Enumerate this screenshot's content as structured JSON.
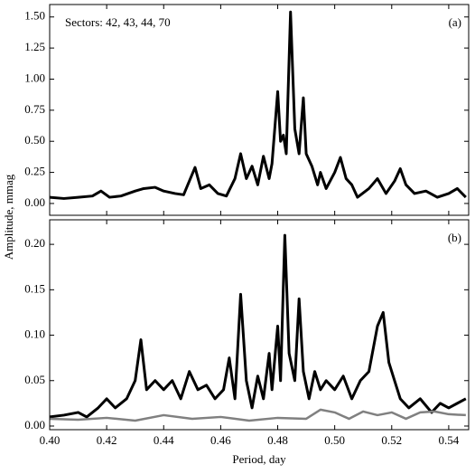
{
  "chart_data": [
    {
      "type": "line",
      "title": "Sectors: 42, 43, 44, 70",
      "panel_label": "(a)",
      "ylabel": "Amplitude, mmag",
      "xlim": [
        0.4,
        0.547
      ],
      "xticks": [
        0.4,
        0.42,
        0.44,
        0.46,
        0.48,
        0.5,
        0.52,
        0.54
      ],
      "ylim": [
        -0.095,
        1.6
      ],
      "yticks": [
        {
          "value": 0,
          "label": "0.00"
        },
        {
          "value": 0.25,
          "label": "0.25"
        },
        {
          "value": 0.5,
          "label": "0.50"
        },
        {
          "value": 0.75,
          "label": "0.75"
        },
        {
          "value": 1,
          "label": "1.00"
        },
        {
          "value": 1.25,
          "label": "1.25"
        },
        {
          "value": 1.5,
          "label": "1.50"
        }
      ],
      "series": [
        {
          "color": "#000000",
          "x": [
            0.4,
            0.405,
            0.41,
            0.415,
            0.418,
            0.421,
            0.425,
            0.43,
            0.433,
            0.437,
            0.44,
            0.444,
            0.447,
            0.451,
            0.453,
            0.456,
            0.459,
            0.462,
            0.465,
            0.467,
            0.469,
            0.471,
            0.473,
            0.475,
            0.477,
            0.478,
            0.48,
            0.481,
            0.482,
            0.483,
            0.4845,
            0.486,
            0.4875,
            0.489,
            0.49,
            0.492,
            0.494,
            0.495,
            0.497,
            0.5,
            0.502,
            0.504,
            0.506,
            0.508,
            0.512,
            0.515,
            0.518,
            0.521,
            0.523,
            0.525,
            0.528,
            0.532,
            0.536,
            0.54,
            0.543,
            0.546
          ],
          "values": [
            0.05,
            0.04,
            0.05,
            0.06,
            0.1,
            0.05,
            0.06,
            0.1,
            0.12,
            0.13,
            0.1,
            0.08,
            0.07,
            0.29,
            0.12,
            0.15,
            0.08,
            0.06,
            0.2,
            0.4,
            0.2,
            0.3,
            0.15,
            0.38,
            0.2,
            0.32,
            0.9,
            0.5,
            0.55,
            0.4,
            1.54,
            0.6,
            0.4,
            0.85,
            0.4,
            0.3,
            0.15,
            0.25,
            0.12,
            0.25,
            0.37,
            0.2,
            0.15,
            0.05,
            0.12,
            0.2,
            0.08,
            0.18,
            0.28,
            0.15,
            0.08,
            0.1,
            0.05,
            0.08,
            0.12,
            0.05
          ]
        }
      ]
    },
    {
      "type": "line",
      "panel_label": "(b)",
      "xlabel": "Period, day",
      "xlim": [
        0.4,
        0.547
      ],
      "xticks": [
        {
          "value": 0.4,
          "label": "0.40"
        },
        {
          "value": 0.42,
          "label": "0.42"
        },
        {
          "value": 0.44,
          "label": "0.44"
        },
        {
          "value": 0.46,
          "label": "0.46"
        },
        {
          "value": 0.48,
          "label": "0.48"
        },
        {
          "value": 0.5,
          "label": "0.50"
        },
        {
          "value": 0.52,
          "label": "0.52"
        },
        {
          "value": 0.54,
          "label": "0.54"
        }
      ],
      "ylim": [
        -0.004,
        0.227
      ],
      "yticks": [
        {
          "value": 0,
          "label": "0.00"
        },
        {
          "value": 0.05,
          "label": "0.05"
        },
        {
          "value": 0.1,
          "label": "0.10"
        },
        {
          "value": 0.15,
          "label": "0.15"
        },
        {
          "value": 0.2,
          "label": "0.20"
        }
      ],
      "series": [
        {
          "color": "#000000",
          "x": [
            0.4,
            0.405,
            0.41,
            0.413,
            0.417,
            0.42,
            0.423,
            0.427,
            0.43,
            0.432,
            0.434,
            0.437,
            0.44,
            0.443,
            0.446,
            0.449,
            0.452,
            0.455,
            0.458,
            0.461,
            0.463,
            0.465,
            0.467,
            0.469,
            0.471,
            0.473,
            0.475,
            0.477,
            0.478,
            0.48,
            0.481,
            0.4825,
            0.484,
            0.486,
            0.4875,
            0.489,
            0.491,
            0.493,
            0.495,
            0.497,
            0.5,
            0.503,
            0.506,
            0.509,
            0.512,
            0.515,
            0.517,
            0.519,
            0.521,
            0.523,
            0.526,
            0.53,
            0.534,
            0.537,
            0.54,
            0.543,
            0.546
          ],
          "values": [
            0.01,
            0.012,
            0.015,
            0.01,
            0.02,
            0.03,
            0.02,
            0.03,
            0.05,
            0.095,
            0.04,
            0.05,
            0.04,
            0.05,
            0.03,
            0.06,
            0.04,
            0.045,
            0.03,
            0.04,
            0.075,
            0.03,
            0.145,
            0.05,
            0.02,
            0.055,
            0.03,
            0.08,
            0.04,
            0.11,
            0.05,
            0.21,
            0.08,
            0.05,
            0.14,
            0.06,
            0.03,
            0.06,
            0.04,
            0.05,
            0.04,
            0.055,
            0.03,
            0.05,
            0.06,
            0.11,
            0.125,
            0.07,
            0.05,
            0.03,
            0.02,
            0.03,
            0.015,
            0.025,
            0.02,
            0.025,
            0.03
          ]
        },
        {
          "color": "#808080",
          "x": [
            0.4,
            0.41,
            0.42,
            0.43,
            0.44,
            0.45,
            0.46,
            0.47,
            0.48,
            0.49,
            0.495,
            0.5,
            0.505,
            0.51,
            0.515,
            0.52,
            0.525,
            0.53,
            0.535,
            0.54,
            0.546
          ],
          "values": [
            0.008,
            0.007,
            0.009,
            0.006,
            0.012,
            0.008,
            0.01,
            0.006,
            0.009,
            0.008,
            0.018,
            0.015,
            0.008,
            0.016,
            0.012,
            0.015,
            0.008,
            0.015,
            0.016,
            0.013,
            0.012
          ]
        }
      ]
    }
  ]
}
